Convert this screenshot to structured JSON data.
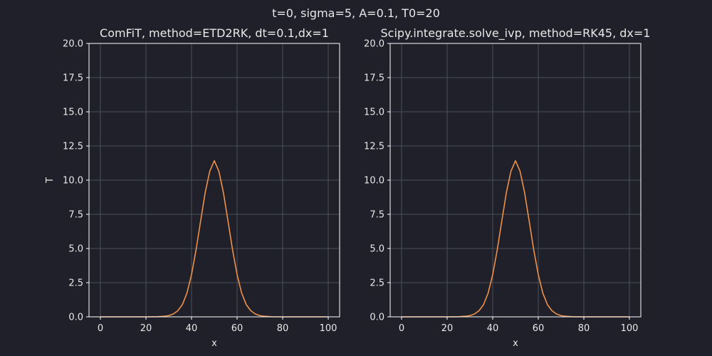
{
  "figure": {
    "suptitle": "t=0, sigma=5, A=0.1, T0=20",
    "background": "#1f2029"
  },
  "style": {
    "text_color": "#e8e8e8",
    "axis_color": "#ffffff",
    "grid_color": "#5a5c66",
    "line_color": "#f0914a"
  },
  "chart_data": [
    {
      "type": "line",
      "title": "ComFiT, method=ETD2RK, dt=0.1,dx=1",
      "xlabel": "x",
      "ylabel": "T",
      "xlim": [
        -5,
        105
      ],
      "ylim": [
        0,
        20
      ],
      "xticks": [
        0,
        20,
        40,
        60,
        80,
        100
      ],
      "xtick_labels": [
        "0",
        "20",
        "40",
        "60",
        "80",
        "100"
      ],
      "yticks": [
        0,
        2.5,
        5,
        7.5,
        10,
        12.5,
        15,
        17.5,
        20
      ],
      "ytick_labels": [
        "0.0",
        "2.5",
        "5.0",
        "7.5",
        "10.0",
        "12.5",
        "15.0",
        "17.5",
        "20.0"
      ],
      "grid": true,
      "series": [
        {
          "x": [
            0,
            5,
            10,
            15,
            20,
            25,
            28,
            30,
            32,
            34,
            36,
            38,
            40,
            42,
            44,
            46,
            48,
            50,
            52,
            54,
            56,
            58,
            60,
            62,
            64,
            66,
            68,
            70,
            72,
            75,
            80,
            85,
            90,
            95,
            100
          ],
          "values": [
            0,
            0,
            0,
            0,
            0,
            0.01,
            0.04,
            0.09,
            0.21,
            0.45,
            0.9,
            1.74,
            3.09,
            4.91,
            7.02,
            9.09,
            10.65,
            11.42,
            10.65,
            9.09,
            7.02,
            4.91,
            3.09,
            1.74,
            0.9,
            0.45,
            0.21,
            0.09,
            0.04,
            0.01,
            0,
            0,
            0,
            0,
            0
          ]
        }
      ]
    },
    {
      "type": "line",
      "title": "Scipy.integrate.solve_ivp, method=RK45, dx=1",
      "xlabel": "x",
      "ylabel": "",
      "xlim": [
        -5,
        105
      ],
      "ylim": [
        0,
        20
      ],
      "xticks": [
        0,
        20,
        40,
        60,
        80,
        100
      ],
      "xtick_labels": [
        "0",
        "20",
        "40",
        "60",
        "80",
        "100"
      ],
      "yticks": [
        0,
        2.5,
        5,
        7.5,
        10,
        12.5,
        15,
        17.5,
        20
      ],
      "ytick_labels": [
        "0.0",
        "2.5",
        "5.0",
        "7.5",
        "10.0",
        "12.5",
        "15.0",
        "17.5",
        "20.0"
      ],
      "grid": true,
      "series": [
        {
          "x": [
            0,
            5,
            10,
            15,
            20,
            25,
            28,
            30,
            32,
            34,
            36,
            38,
            40,
            42,
            44,
            46,
            48,
            50,
            52,
            54,
            56,
            58,
            60,
            62,
            64,
            66,
            68,
            70,
            72,
            75,
            80,
            85,
            90,
            95,
            100
          ],
          "values": [
            0,
            0,
            0,
            0,
            0,
            0.01,
            0.04,
            0.09,
            0.21,
            0.45,
            0.9,
            1.74,
            3.09,
            4.91,
            7.02,
            9.09,
            10.65,
            11.42,
            10.65,
            9.09,
            7.02,
            4.91,
            3.09,
            1.74,
            0.9,
            0.45,
            0.21,
            0.09,
            0.04,
            0.01,
            0,
            0,
            0,
            0,
            0
          ]
        }
      ]
    }
  ]
}
